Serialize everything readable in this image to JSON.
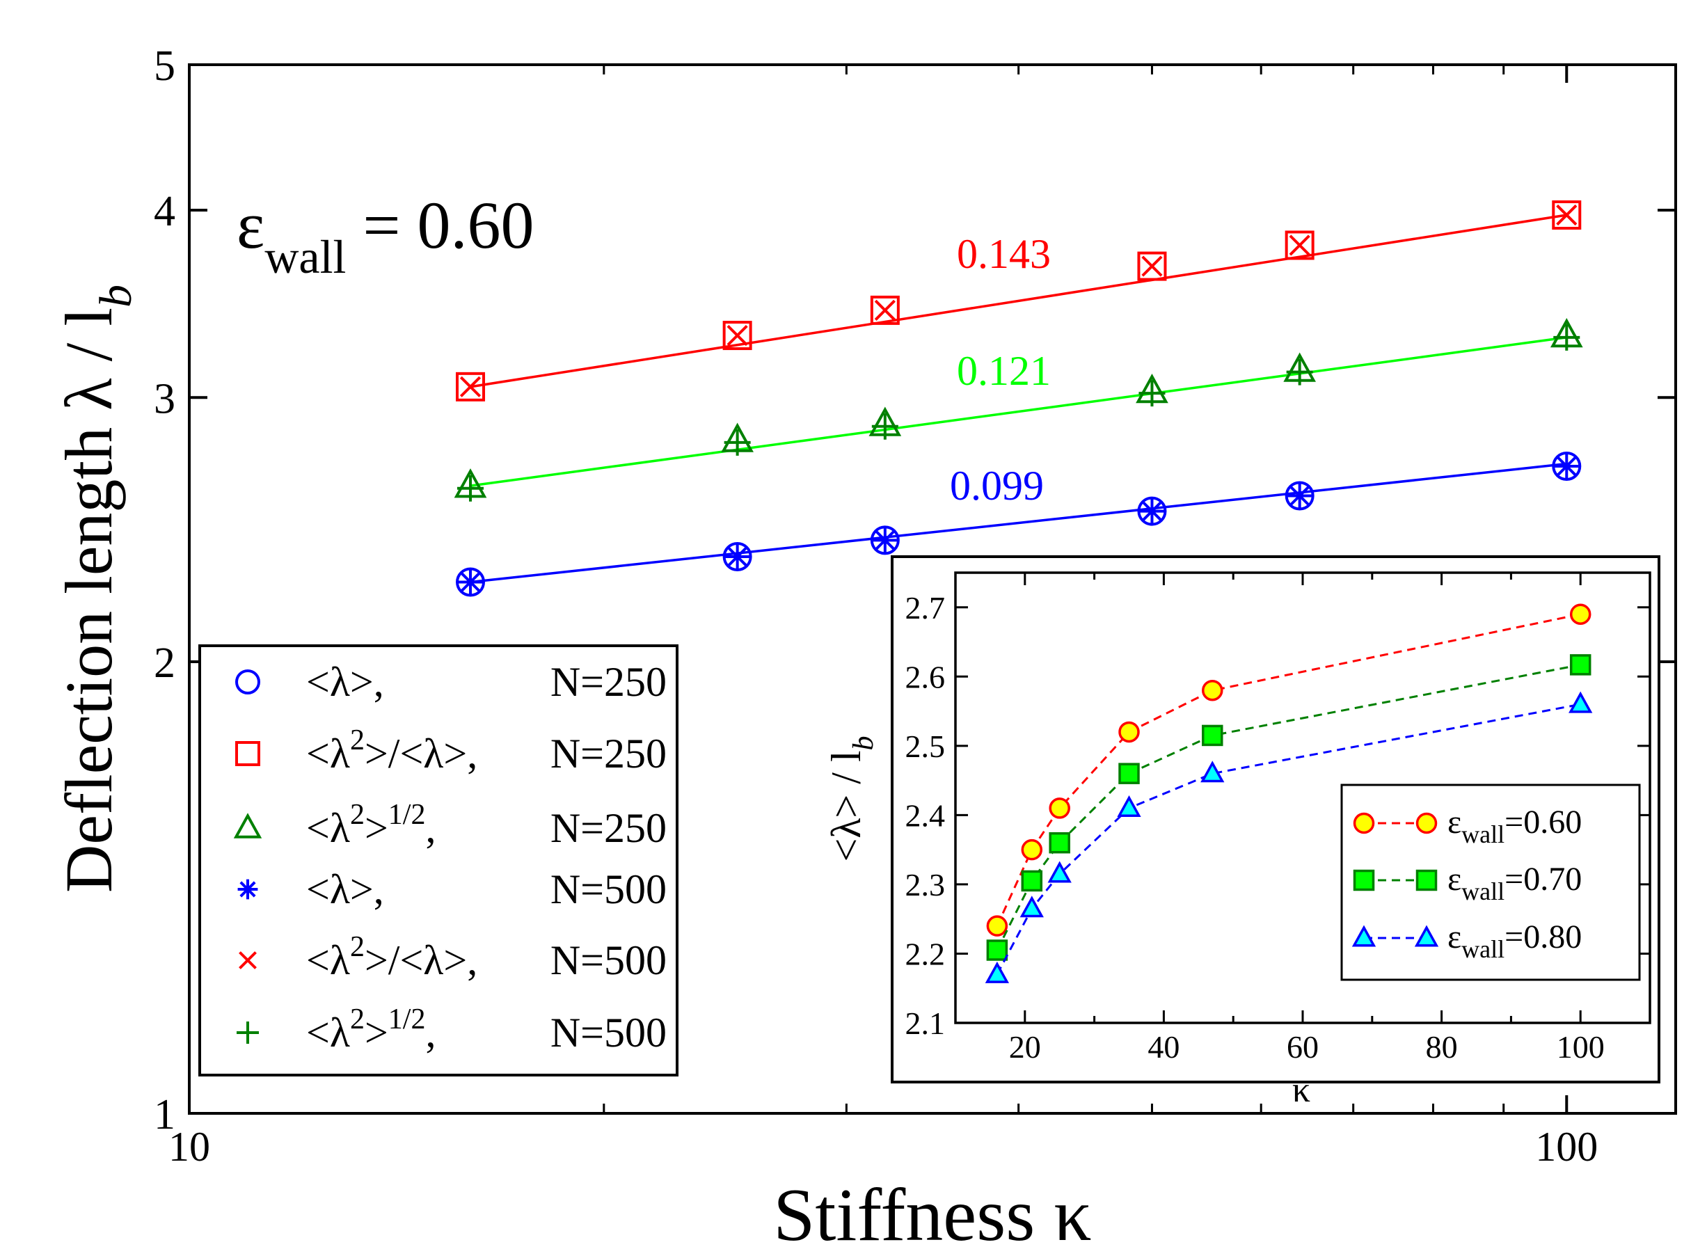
{
  "chart_data": [
    {
      "type": "scatter",
      "id": "main",
      "xscale": "log",
      "yscale": "log",
      "xlim": [
        10,
        120
      ],
      "ylim": [
        1,
        5
      ],
      "xlabel": "Stiffness κ",
      "ylabel": "Deflection length λ / l",
      "ylabel_sub": "b",
      "x_ticks": [
        {
          "v": 10,
          "label": "10"
        },
        {
          "v": 100,
          "label": "100"
        }
      ],
      "x_minor": [
        20,
        30,
        40,
        50,
        60,
        70,
        80,
        90
      ],
      "y_ticks": [
        {
          "v": 1,
          "label": "1"
        },
        {
          "v": 2,
          "label": "2"
        },
        {
          "v": 3,
          "label": "3"
        },
        {
          "v": 4,
          "label": "4"
        },
        {
          "v": 5,
          "label": "5"
        }
      ],
      "annotation": {
        "symbol": "ε",
        "sub": "wall",
        "text": " = 0.60"
      },
      "fits": [
        {
          "label": "0.143",
          "color": "#ff0000",
          "x": [
            16,
            100
          ],
          "y": [
            3.05,
            3.97
          ]
        },
        {
          "label": "0.121",
          "color": "#00ff00",
          "x": [
            16,
            100
          ],
          "y": [
            2.62,
            3.29
          ]
        },
        {
          "label": "0.099",
          "color": "#0000ff",
          "x": [
            16,
            100
          ],
          "y": [
            2.26,
            2.71
          ]
        }
      ],
      "series": [
        {
          "name": "<λ>, N=250",
          "marker": "circle",
          "color": "#0000ff",
          "x": [
            16,
            25,
            32,
            50,
            64,
            100
          ],
          "y": [
            2.26,
            2.35,
            2.41,
            2.52,
            2.58,
            2.7
          ]
        },
        {
          "name": "<λ^2>/<λ>, N=250",
          "marker": "square",
          "color": "#ff0000",
          "x": [
            16,
            25,
            32,
            50,
            64,
            100
          ],
          "y": [
            3.05,
            3.3,
            3.43,
            3.67,
            3.79,
            3.97
          ]
        },
        {
          "name": "<λ^2>^1/2, N=250",
          "marker": "triangle",
          "color": "#008000",
          "x": [
            16,
            25,
            32,
            50,
            64,
            100
          ],
          "y": [
            2.62,
            2.81,
            2.88,
            3.03,
            3.13,
            3.3
          ]
        },
        {
          "name": "<λ>, N=500",
          "marker": "star",
          "color": "#0000ff",
          "x": [
            16,
            25,
            32,
            50,
            64,
            100
          ],
          "y": [
            2.26,
            2.35,
            2.41,
            2.52,
            2.58,
            2.7
          ]
        },
        {
          "name": "<λ^2>/<λ>, N=500",
          "marker": "x",
          "color": "#ff0000",
          "x": [
            16,
            25,
            32,
            50,
            64,
            100
          ],
          "y": [
            3.05,
            3.3,
            3.43,
            3.67,
            3.79,
            3.97
          ]
        },
        {
          "name": "<λ^2>^1/2, N=500",
          "marker": "plus",
          "color": "#008000",
          "x": [
            16,
            25,
            32,
            50,
            64,
            100
          ],
          "y": [
            2.61,
            2.8,
            2.87,
            3.02,
            3.12,
            3.29
          ]
        }
      ],
      "legend": {
        "position": "lower-left",
        "entries": [
          {
            "marker": "circle",
            "color": "#0000ff",
            "expr": "<λ>,",
            "sup": "",
            "tail": "",
            "n": "N=250"
          },
          {
            "marker": "square",
            "color": "#ff0000",
            "expr": "<λ",
            "sup": "2",
            "tail": ">/<λ>,",
            "n": "N=250"
          },
          {
            "marker": "triangle",
            "color": "#008000",
            "expr": "<λ",
            "sup": "2",
            "tail": ">",
            "sup2": "1/2",
            "tail2": ",",
            "n": "N=250"
          },
          {
            "marker": "star",
            "color": "#0000ff",
            "expr": "<λ>,",
            "sup": "",
            "tail": "",
            "n": "N=500"
          },
          {
            "marker": "x",
            "color": "#ff0000",
            "expr": "<λ",
            "sup": "2",
            "tail": ">/<λ>,",
            "n": "N=500"
          },
          {
            "marker": "plus",
            "color": "#008000",
            "expr": "<λ",
            "sup": "2",
            "tail": ">",
            "sup2": "1/2",
            "tail2": ",",
            "n": "N=500"
          }
        ]
      }
    },
    {
      "type": "line",
      "id": "inset",
      "xlim": [
        10,
        110
      ],
      "ylim": [
        2.1,
        2.75
      ],
      "xlabel": "κ",
      "ylabel": "<λ> / l",
      "ylabel_sub": "b",
      "x_ticks": [
        {
          "v": 20,
          "label": "20"
        },
        {
          "v": 40,
          "label": "40"
        },
        {
          "v": 60,
          "label": "60"
        },
        {
          "v": 80,
          "label": "80"
        },
        {
          "v": 100,
          "label": "100"
        }
      ],
      "x_minor": [
        30,
        50,
        70,
        90
      ],
      "y_ticks": [
        {
          "v": 2.1,
          "label": "2.1"
        },
        {
          "v": 2.2,
          "label": "2.2"
        },
        {
          "v": 2.3,
          "label": "2.3"
        },
        {
          "v": 2.4,
          "label": "2.4"
        },
        {
          "v": 2.5,
          "label": "2.5"
        },
        {
          "v": 2.6,
          "label": "2.6"
        },
        {
          "v": 2.7,
          "label": "2.7"
        }
      ],
      "series": [
        {
          "name": "εwall=0.60",
          "eps": "0.60",
          "marker": "circle",
          "color": "#ff0000",
          "fill": "#ffff00",
          "x": [
            16,
            21,
            25,
            35,
            47,
            100
          ],
          "y": [
            2.24,
            2.35,
            2.41,
            2.52,
            2.58,
            2.69
          ]
        },
        {
          "name": "εwall=0.70",
          "eps": "0.70",
          "marker": "square",
          "color": "#008000",
          "fill": "#00ff00",
          "x": [
            16,
            21,
            25,
            35,
            47,
            100
          ],
          "y": [
            2.205,
            2.305,
            2.36,
            2.46,
            2.515,
            2.617
          ]
        },
        {
          "name": "εwall=0.80",
          "eps": "0.80",
          "marker": "triangle",
          "color": "#0000ff",
          "fill": "#00ffff",
          "x": [
            16,
            21,
            25,
            35,
            47,
            100
          ],
          "y": [
            2.17,
            2.265,
            2.315,
            2.41,
            2.46,
            2.56
          ]
        }
      ],
      "legend": {
        "position": "lower-right",
        "symbol": "ε",
        "sub": "wall"
      }
    }
  ]
}
